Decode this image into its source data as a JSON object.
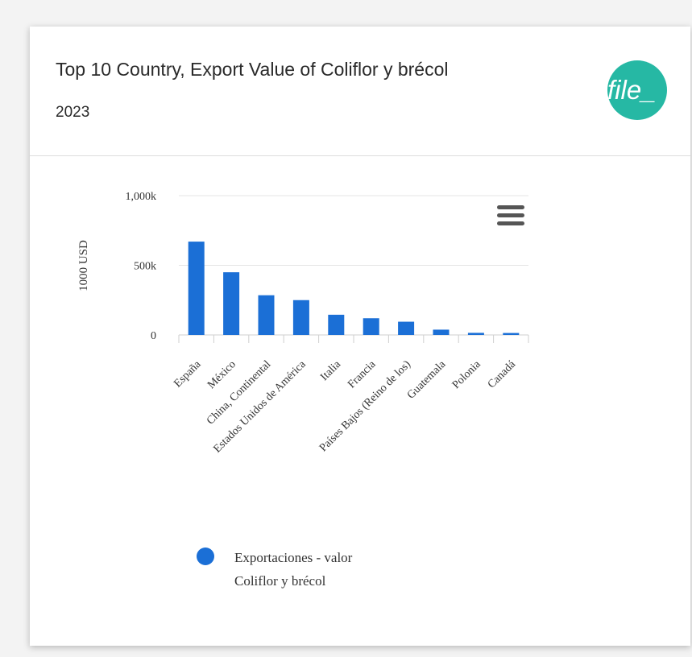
{
  "card": {
    "title": "Top 10 Country, Export Value of Coliflor y brécol",
    "subtitle": "2023",
    "badge_label": "file_",
    "badge_color": "#26b8a4"
  },
  "chart_data": {
    "type": "bar",
    "categories": [
      "España",
      "México",
      "China, Continental",
      "Estados Unidos de América",
      "Italia",
      "Francia",
      "Países Bajos (Reino de los)",
      "Guatemala",
      "Polonia",
      "Canadá"
    ],
    "series": [
      {
        "name": "Exportaciones - valor Coliflor y brécol",
        "color": "#1b6fd6",
        "values": [
          670000,
          450000,
          285000,
          250000,
          145000,
          120000,
          95000,
          38000,
          15000,
          14000
        ]
      }
    ],
    "ylabel": "1000 USD",
    "ylim": [
      0,
      1000000
    ],
    "yticks": [
      {
        "value": 0,
        "label": "0"
      },
      {
        "value": 500000,
        "label": "500k"
      },
      {
        "value": 1000000,
        "label": "1,000k"
      }
    ],
    "grid": true,
    "legend": {
      "position": "bottom-left",
      "line1": "Exportaciones - valor",
      "line2": "Coliflor y brécol"
    },
    "menu_icon": "hamburger-menu-icon"
  }
}
